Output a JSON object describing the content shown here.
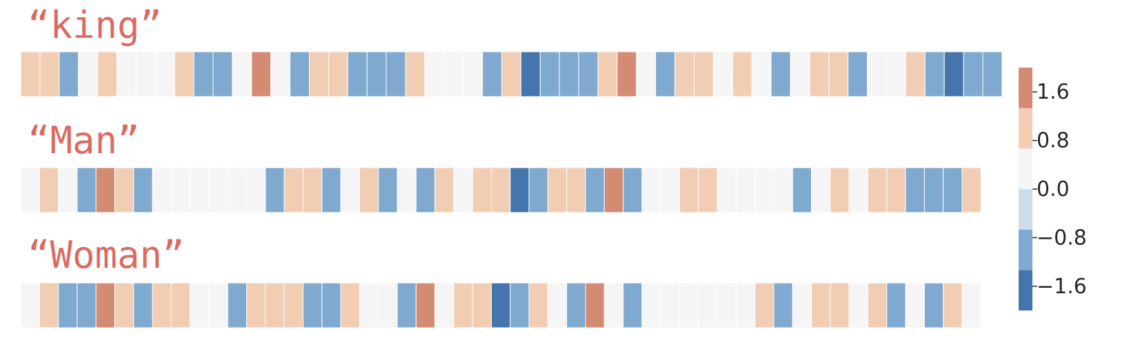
{
  "chart_data": {
    "type": "heatmap",
    "colormap": "RdBu_r (diverging, 6 discrete bins)",
    "bin_edges": [
      -2.0,
      -1.333,
      -0.667,
      0.0,
      0.667,
      1.333,
      2.0
    ],
    "bin_colors": [
      "#4575ad",
      "#7fa9ce",
      "#ccdde9",
      "#f5f5f5",
      "#f1cdb4",
      "#d48b73",
      "#a5463e"
    ],
    "colorbar": {
      "ticks": [
        1.6,
        0.8,
        0.0,
        -0.8,
        -1.6
      ],
      "tick_labels": [
        "1.6",
        "0.8",
        "0.0",
        "−0.8",
        "−1.6"
      ],
      "range": [
        -2.0,
        2.0
      ]
    },
    "rows": [
      {
        "name": "“king”",
        "values": [
          0.8,
          0.8,
          -0.8,
          0,
          0.8,
          0,
          0,
          0,
          0.8,
          -0.8,
          -0.8,
          0,
          1.6,
          0,
          -1.2,
          0.8,
          0.8,
          -0.8,
          -0.8,
          -0.8,
          0.8,
          0,
          0,
          0,
          -0.8,
          0.8,
          -1.6,
          -1.2,
          -1.2,
          -0.8,
          0.8,
          1.6,
          0,
          -0.8,
          0.8,
          0.8,
          0,
          0.8,
          0,
          -0.8,
          0,
          0.8,
          1.2,
          -1.2,
          0,
          0,
          0.8,
          -1.2,
          -1.6,
          -0.8,
          -0.8
        ]
      },
      {
        "name": "“Man”",
        "values": [
          0,
          0.8,
          0,
          -0.8,
          1.6,
          0.8,
          -0.8,
          0,
          0,
          0,
          0,
          0,
          0,
          -0.8,
          0.8,
          0.8,
          -0.8,
          0,
          0.8,
          -0.8,
          0,
          -0.8,
          1.2,
          0,
          0.8,
          0.8,
          -1.6,
          -0.8,
          0.8,
          0.8,
          -0.8,
          1.6,
          -0.8,
          0,
          0,
          0.8,
          0.8,
          0,
          0,
          0,
          0,
          -0.8,
          0,
          0.8,
          0,
          0.8,
          0.8,
          -0.8,
          -0.8,
          -1.2,
          0.8
        ]
      },
      {
        "name": "“Woman”",
        "values": [
          0,
          0.8,
          -0.8,
          -0.8,
          1.6,
          1.2,
          -0.8,
          0.8,
          0.8,
          0,
          0,
          -0.8,
          0.8,
          0.8,
          0.8,
          -0.8,
          -1.2,
          0.8,
          0,
          0,
          -0.8,
          1.6,
          0,
          0.8,
          0.8,
          -1.6,
          -0.8,
          0.8,
          0,
          -0.8,
          1.6,
          0,
          -0.8,
          0,
          0,
          0,
          0,
          0,
          0,
          0.8,
          -0.8,
          0,
          0.8,
          0.8,
          0,
          0.8,
          -0.8,
          0,
          -1.2,
          0.8,
          0
        ]
      }
    ]
  }
}
